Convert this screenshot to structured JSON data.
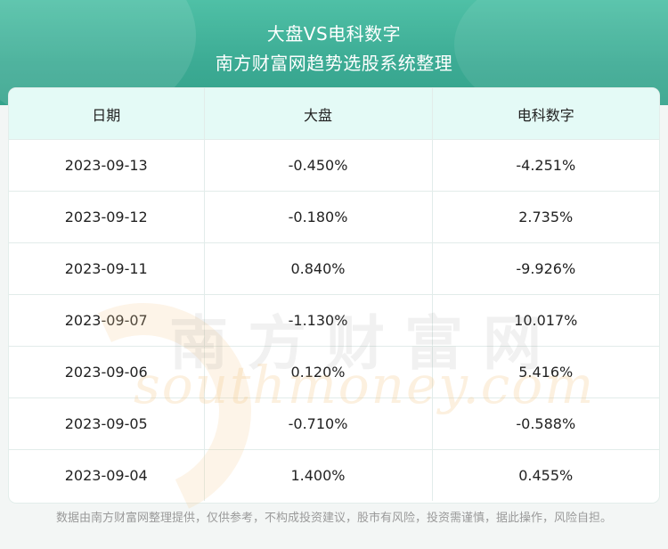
{
  "header": {
    "title": "大盘VS电科数字",
    "subtitle": "南方财富网趋势选股系统整理"
  },
  "table": {
    "columns": [
      "日期",
      "大盘",
      "电科数字"
    ],
    "rows": [
      [
        "2023-09-13",
        "-0.450%",
        "-4.251%"
      ],
      [
        "2023-09-12",
        "-0.180%",
        "2.735%"
      ],
      [
        "2023-09-11",
        "0.840%",
        "-9.926%"
      ],
      [
        "2023-09-07",
        "-1.130%",
        "10.017%"
      ],
      [
        "2023-09-06",
        "0.120%",
        "5.416%"
      ],
      [
        "2023-09-05",
        "-0.710%",
        "-0.588%"
      ],
      [
        "2023-09-04",
        "1.400%",
        "0.455%"
      ]
    ]
  },
  "watermark": {
    "cn": "南方财富网",
    "en": "southmoney.com"
  },
  "footer": {
    "disclaimer": "数据由南方财富网整理提供，仅供参考，不构成投资建议，股市有风险，投资需谨慎，据此操作，风险自担。"
  },
  "colors": {
    "header_bg": "#3cab94",
    "table_header_bg": "#e4faf6"
  }
}
